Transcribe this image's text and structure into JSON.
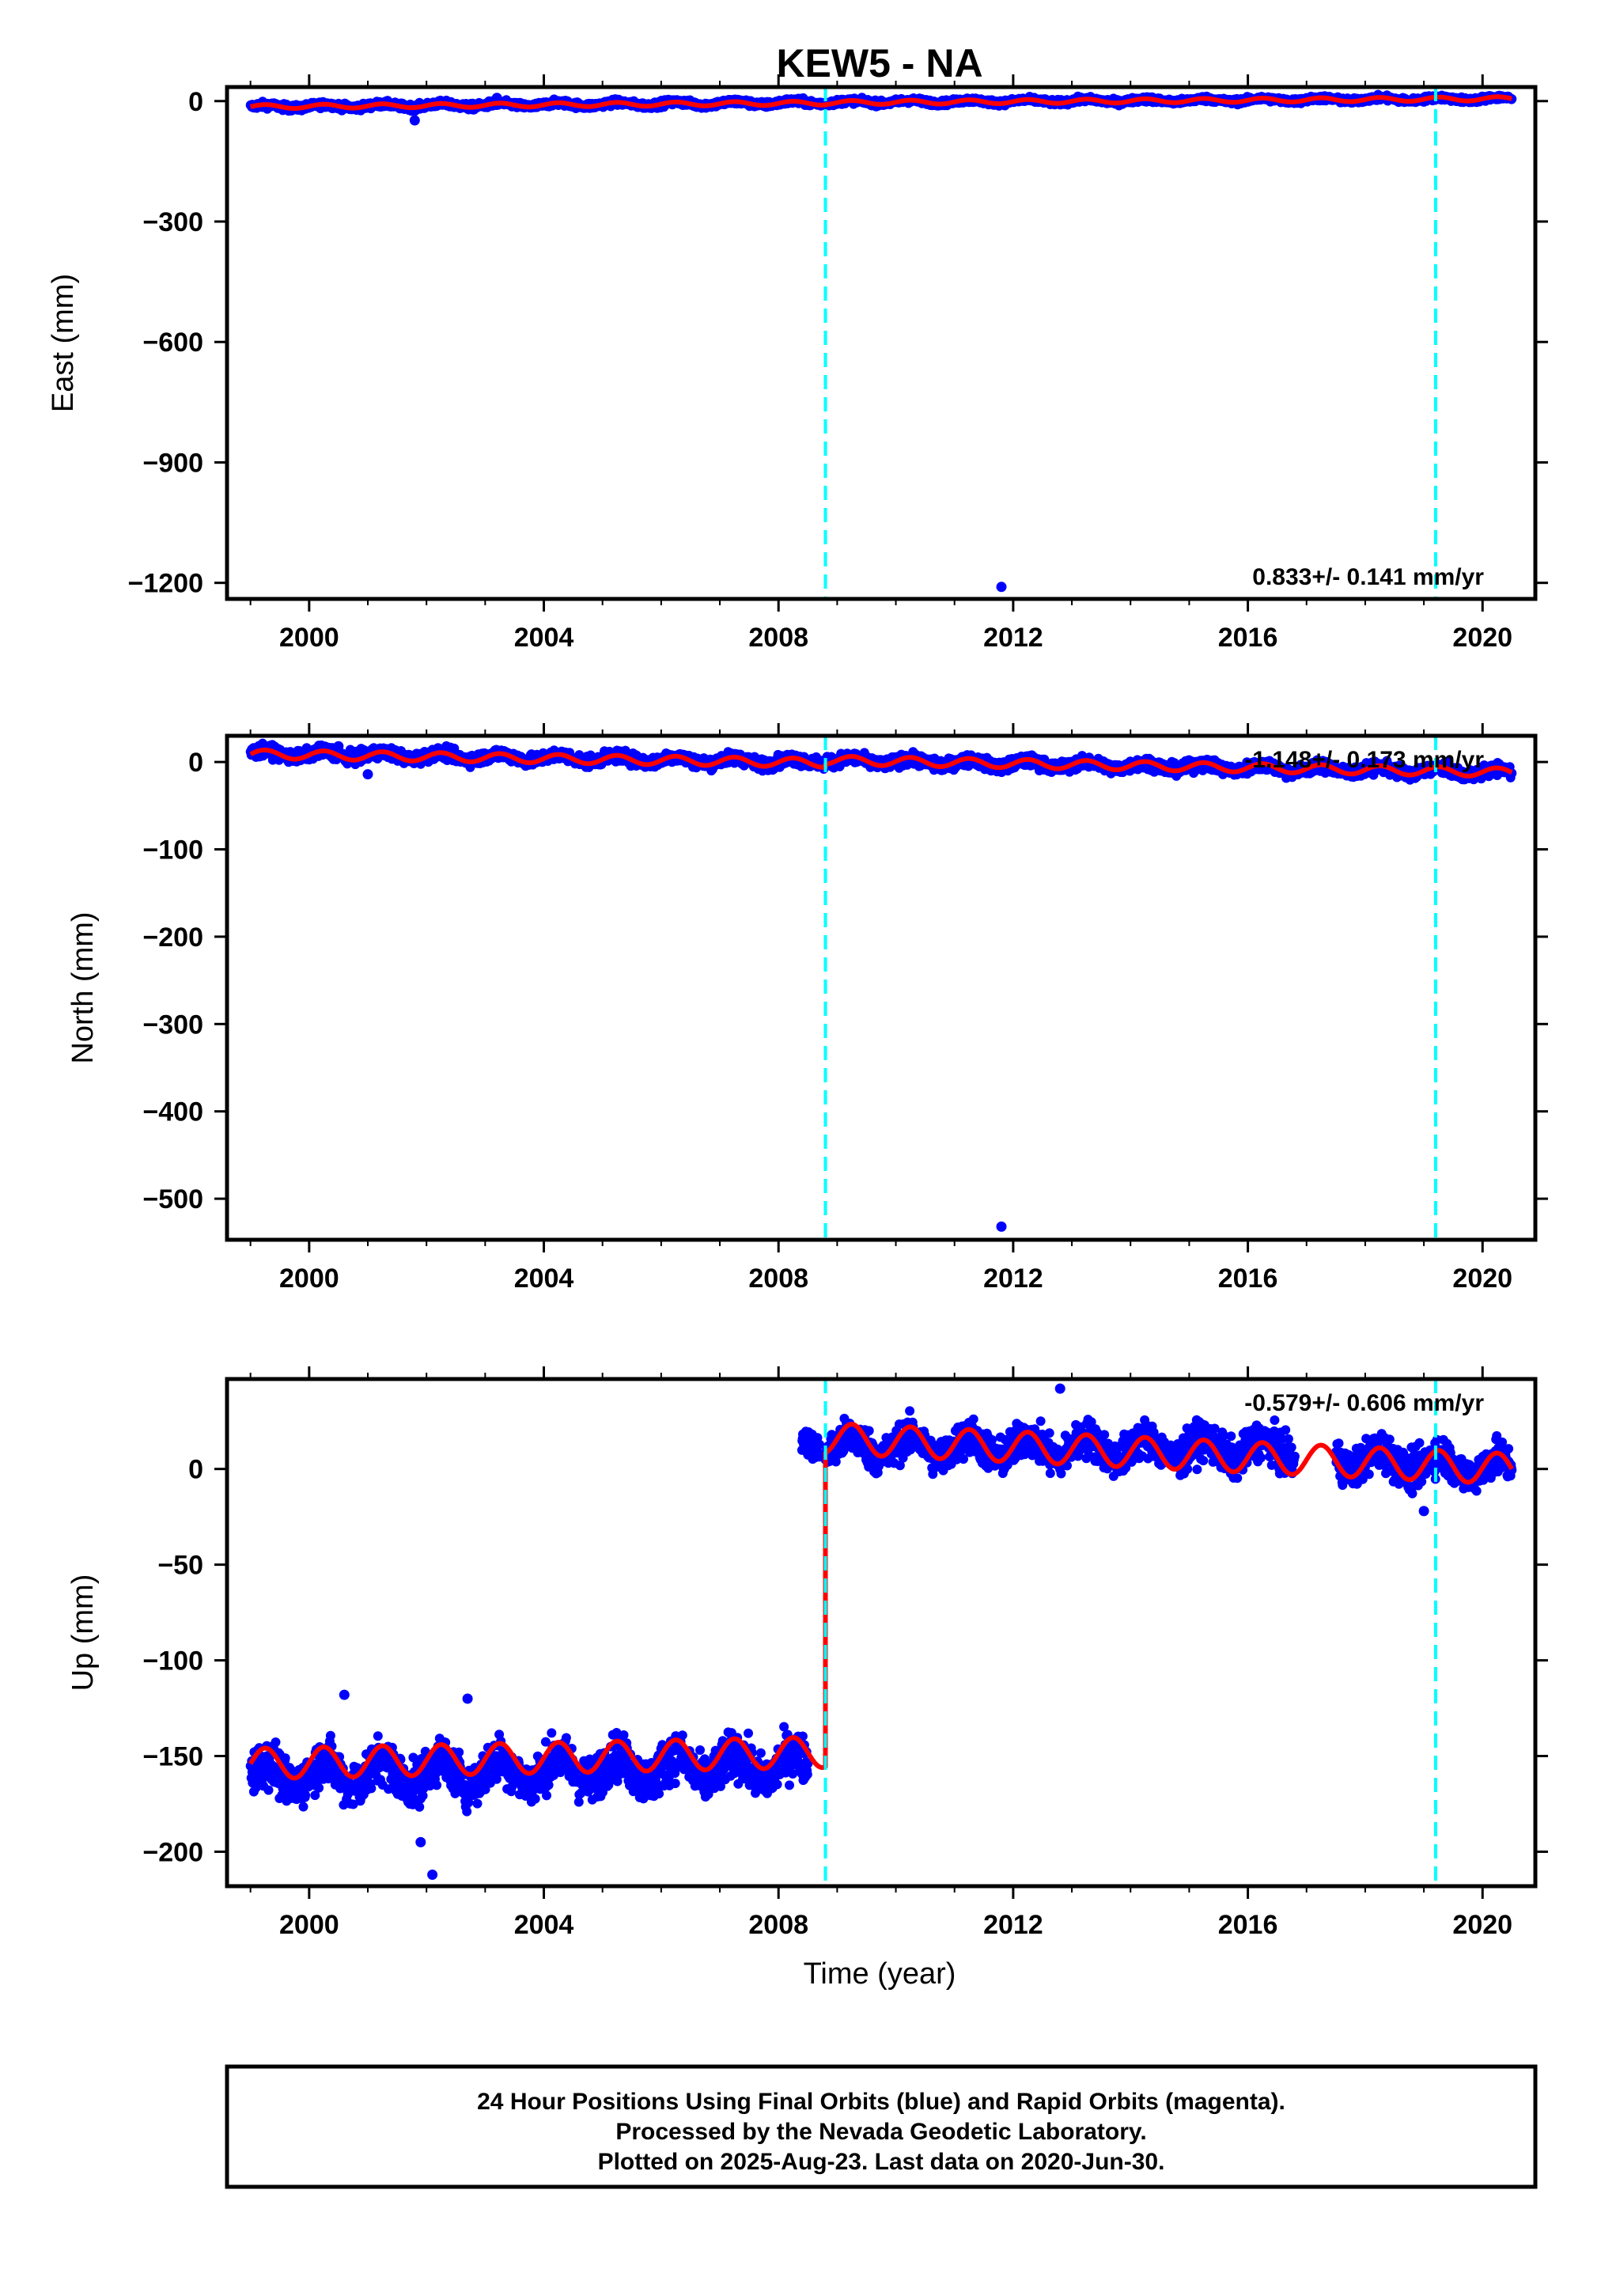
{
  "title": "KEW5 - NA",
  "colors": {
    "final_orbits": "#0000ff",
    "model": "#ff0000",
    "offsets": "#00ffff",
    "frame": "#000000"
  },
  "chart_data": [
    {
      "type": "scatter",
      "name": "east",
      "ylabel": "East (mm)",
      "xlim": [
        1998.6,
        2020.9
      ],
      "ylim": [
        -1240,
        35
      ],
      "yticks": [
        0,
        -300,
        -600,
        -900,
        -1200
      ],
      "ytick_labels": [
        "0",
        "−300",
        "−600",
        "−900",
        "−1200"
      ],
      "xticks": [
        2000,
        2004,
        2008,
        2012,
        2016,
        2020
      ],
      "xtick_labels": [
        "2000",
        "2004",
        "2008",
        "2012",
        "2016",
        "2020"
      ],
      "rate_text": "0.833+/- 0.141 mm/yr",
      "offset_lines": [
        2008.8,
        2019.2
      ],
      "series": [
        {
          "kind": "points",
          "segments": [
            {
              "x0": 1999.0,
              "x1": 2008.6,
              "y0": -14,
              "y1": -4,
              "scatter": 7
            },
            {
              "x0": 2008.6,
              "x1": 2020.5,
              "y0": -3,
              "y1": 6,
              "scatter": 6
            }
          ],
          "outliers": [
            [
              2011.8,
              -1210
            ],
            [
              2001.8,
              -48
            ],
            [
              2003.2,
              8
            ]
          ]
        },
        {
          "kind": "model",
          "x": [
            1999.0,
            2008.8,
            2008.8,
            2020.5
          ],
          "y": [
            -14,
            -5,
            -4,
            6
          ],
          "amplitude": 5,
          "period": 1.0
        }
      ]
    },
    {
      "type": "scatter",
      "name": "north",
      "ylabel": "North (mm)",
      "xlim": [
        1998.6,
        2020.9
      ],
      "ylim": [
        -547,
        30
      ],
      "yticks": [
        0,
        -100,
        -200,
        -300,
        -400,
        -500
      ],
      "ytick_labels": [
        "0",
        "−100",
        "−200",
        "−300",
        "−400",
        "−500"
      ],
      "xticks": [
        2000,
        2004,
        2008,
        2012,
        2016,
        2020
      ],
      "xtick_labels": [
        "2000",
        "2004",
        "2008",
        "2012",
        "2016",
        "2020"
      ],
      "rate_text": "-1.148+/- 0.173 mm/yr",
      "offset_lines": [
        2008.8,
        2019.2
      ],
      "series": [
        {
          "kind": "points",
          "segments": [
            {
              "x0": 1999.0,
              "x1": 2008.6,
              "y0": 10,
              "y1": 0,
              "scatter": 6
            },
            {
              "x0": 2008.6,
              "x1": 2020.5,
              "y0": 2,
              "y1": -12,
              "scatter": 6
            }
          ],
          "outliers": [
            [
              2011.8,
              -532
            ],
            [
              2001.0,
              -14
            ],
            [
              2000.5,
              18
            ]
          ]
        },
        {
          "kind": "model",
          "x": [
            1999.0,
            2008.8,
            2008.8,
            2020.5
          ],
          "y": [
            9,
            -1,
            2,
            -12
          ],
          "amplitude": 5,
          "period": 1.0
        }
      ]
    },
    {
      "type": "scatter",
      "name": "up",
      "ylabel": "Up (mm)",
      "xlabel": "Time (year)",
      "xlim": [
        1998.6,
        2020.9
      ],
      "ylim": [
        -218,
        47
      ],
      "yticks": [
        0,
        -50,
        -100,
        -150,
        -200
      ],
      "ytick_labels": [
        "0",
        "−50",
        "−100",
        "−150",
        "−200"
      ],
      "xticks": [
        2000,
        2004,
        2008,
        2012,
        2016,
        2020
      ],
      "xtick_labels": [
        "2000",
        "2004",
        "2008",
        "2012",
        "2016",
        "2020"
      ],
      "rate_text": "-0.579+/- 0.606 mm/yr",
      "offset_lines": [
        2008.8,
        2019.2
      ],
      "series": [
        {
          "kind": "points",
          "segments": [
            {
              "x0": 1999.0,
              "x1": 2008.5,
              "y0": -160,
              "y1": -155,
              "scatter": 11
            },
            {
              "x0": 2008.4,
              "x1": 2008.7,
              "y0": 14,
              "y1": 14,
              "scatter": 6
            },
            {
              "x0": 2008.8,
              "x1": 2016.8,
              "y0": 12,
              "y1": 10,
              "scatter": 9
            },
            {
              "x0": 2017.5,
              "x1": 2020.5,
              "y0": 6,
              "y1": 0,
              "scatter": 9
            }
          ],
          "outliers": [
            [
              2000.6,
              -118
            ],
            [
              2002.7,
              -120
            ],
            [
              2002.1,
              -212
            ],
            [
              2012.8,
              42
            ],
            [
              2019.0,
              -22
            ],
            [
              2001.9,
              -195
            ]
          ]
        },
        {
          "kind": "model",
          "x": [
            1999.0,
            2008.8,
            2008.8,
            2020.5
          ],
          "y": [
            -154,
            -148,
            16,
            0
          ],
          "amplitude": 8,
          "period": 1.0
        }
      ]
    }
  ],
  "footer": {
    "line1": "24 Hour Positions Using Final Orbits (blue) and Rapid Orbits (magenta).",
    "line2": "Processed by the Nevada Geodetic Laboratory.",
    "line3": "Plotted on 2025-Aug-23. Last data on 2020-Jun-30."
  }
}
